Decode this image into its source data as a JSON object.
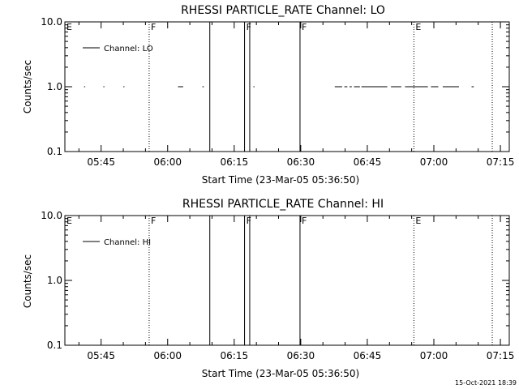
{
  "chart_data": [
    {
      "type": "line",
      "title": "RHESSI PARTICLE_RATE Channel: LO",
      "xlabel": "Start Time (23-Mar-05 05:36:50)",
      "ylabel": "Counts/sec",
      "xlim": [
        "05:36:50",
        "07:17:00"
      ],
      "ylim": [
        0.1,
        10.0
      ],
      "yscale": "log",
      "yticks": [
        {
          "v": 10.0,
          "label": "10.0"
        },
        {
          "v": 1.0,
          "label": "1.0"
        },
        {
          "v": 0.1,
          "label": "0.1"
        }
      ],
      "xticks": [
        "05:45",
        "06:00",
        "06:15",
        "06:30",
        "06:45",
        "07:00",
        "07:15"
      ],
      "legend": {
        "label": "Channel: LO",
        "position": "top-left"
      },
      "series": [
        {
          "segments": [
            {
              "start": "05:41:10",
              "end": "05:41:25",
              "y": 1.0
            },
            {
              "start": "05:45:30",
              "end": "05:45:45",
              "y": 1.0
            },
            {
              "start": "05:50:00",
              "end": "05:50:15",
              "y": 1.0
            },
            {
              "start": "06:02:20",
              "end": "06:03:30",
              "y": 1.0
            },
            {
              "start": "06:07:50",
              "end": "06:08:10",
              "y": 1.0
            },
            {
              "start": "06:19:20",
              "end": "06:19:35",
              "y": 1.0
            },
            {
              "start": "06:37:40",
              "end": "06:39:20",
              "y": 1.0
            },
            {
              "start": "06:39:50",
              "end": "06:40:30",
              "y": 1.0
            },
            {
              "start": "06:41:00",
              "end": "06:41:30",
              "y": 1.0
            },
            {
              "start": "06:42:00",
              "end": "06:43:20",
              "y": 1.0
            },
            {
              "start": "06:43:40",
              "end": "06:49:30",
              "y": 1.0
            },
            {
              "start": "06:50:20",
              "end": "06:52:40",
              "y": 1.0
            },
            {
              "start": "06:53:30",
              "end": "06:58:40",
              "y": 1.0
            },
            {
              "start": "06:59:20",
              "end": "07:01:00",
              "y": 1.0
            },
            {
              "start": "07:02:00",
              "end": "07:05:40",
              "y": 1.0
            },
            {
              "start": "07:08:30",
              "end": "07:09:00",
              "y": 1.0
            }
          ]
        }
      ],
      "markers": [
        {
          "time": "05:36:50",
          "label": "E",
          "style": "dotted"
        },
        {
          "time": "05:55:50",
          "label": "F",
          "style": "dotted"
        },
        {
          "time": "06:09:30",
          "label": "",
          "style": "solid"
        },
        {
          "time": "06:17:20",
          "label": "F",
          "style": "solid"
        },
        {
          "time": "06:18:30",
          "label": "",
          "style": "solid"
        },
        {
          "time": "06:29:50",
          "label": "F",
          "style": "solid"
        },
        {
          "time": "06:55:30",
          "label": "E",
          "style": "dotted"
        },
        {
          "time": "07:13:10",
          "label": "",
          "style": "dotted"
        }
      ]
    },
    {
      "type": "line",
      "title": "RHESSI PARTICLE_RATE Channel: HI",
      "xlabel": "Start Time (23-Mar-05 05:36:50)",
      "ylabel": "Counts/sec",
      "xlim": [
        "05:36:50",
        "07:17:00"
      ],
      "ylim": [
        0.1,
        10.0
      ],
      "yscale": "log",
      "yticks": [
        {
          "v": 10.0,
          "label": "10.0"
        },
        {
          "v": 1.0,
          "label": "1.0"
        },
        {
          "v": 0.1,
          "label": "0.1"
        }
      ],
      "xticks": [
        "05:45",
        "06:00",
        "06:15",
        "06:30",
        "06:45",
        "07:00",
        "07:15"
      ],
      "legend": {
        "label": "Channel: HI",
        "position": "top-left"
      },
      "series": [
        {
          "segments": []
        }
      ],
      "markers": [
        {
          "time": "05:36:50",
          "label": "E",
          "style": "dotted"
        },
        {
          "time": "05:55:50",
          "label": "F",
          "style": "dotted"
        },
        {
          "time": "06:09:30",
          "label": "",
          "style": "solid"
        },
        {
          "time": "06:17:20",
          "label": "F",
          "style": "solid"
        },
        {
          "time": "06:18:30",
          "label": "",
          "style": "solid"
        },
        {
          "time": "06:29:50",
          "label": "F",
          "style": "solid"
        },
        {
          "time": "06:55:30",
          "label": "E",
          "style": "dotted"
        },
        {
          "time": "07:13:10",
          "label": "",
          "style": "dotted"
        }
      ]
    }
  ],
  "footer": {
    "timestamp": "15-Oct-2021 18:39"
  }
}
